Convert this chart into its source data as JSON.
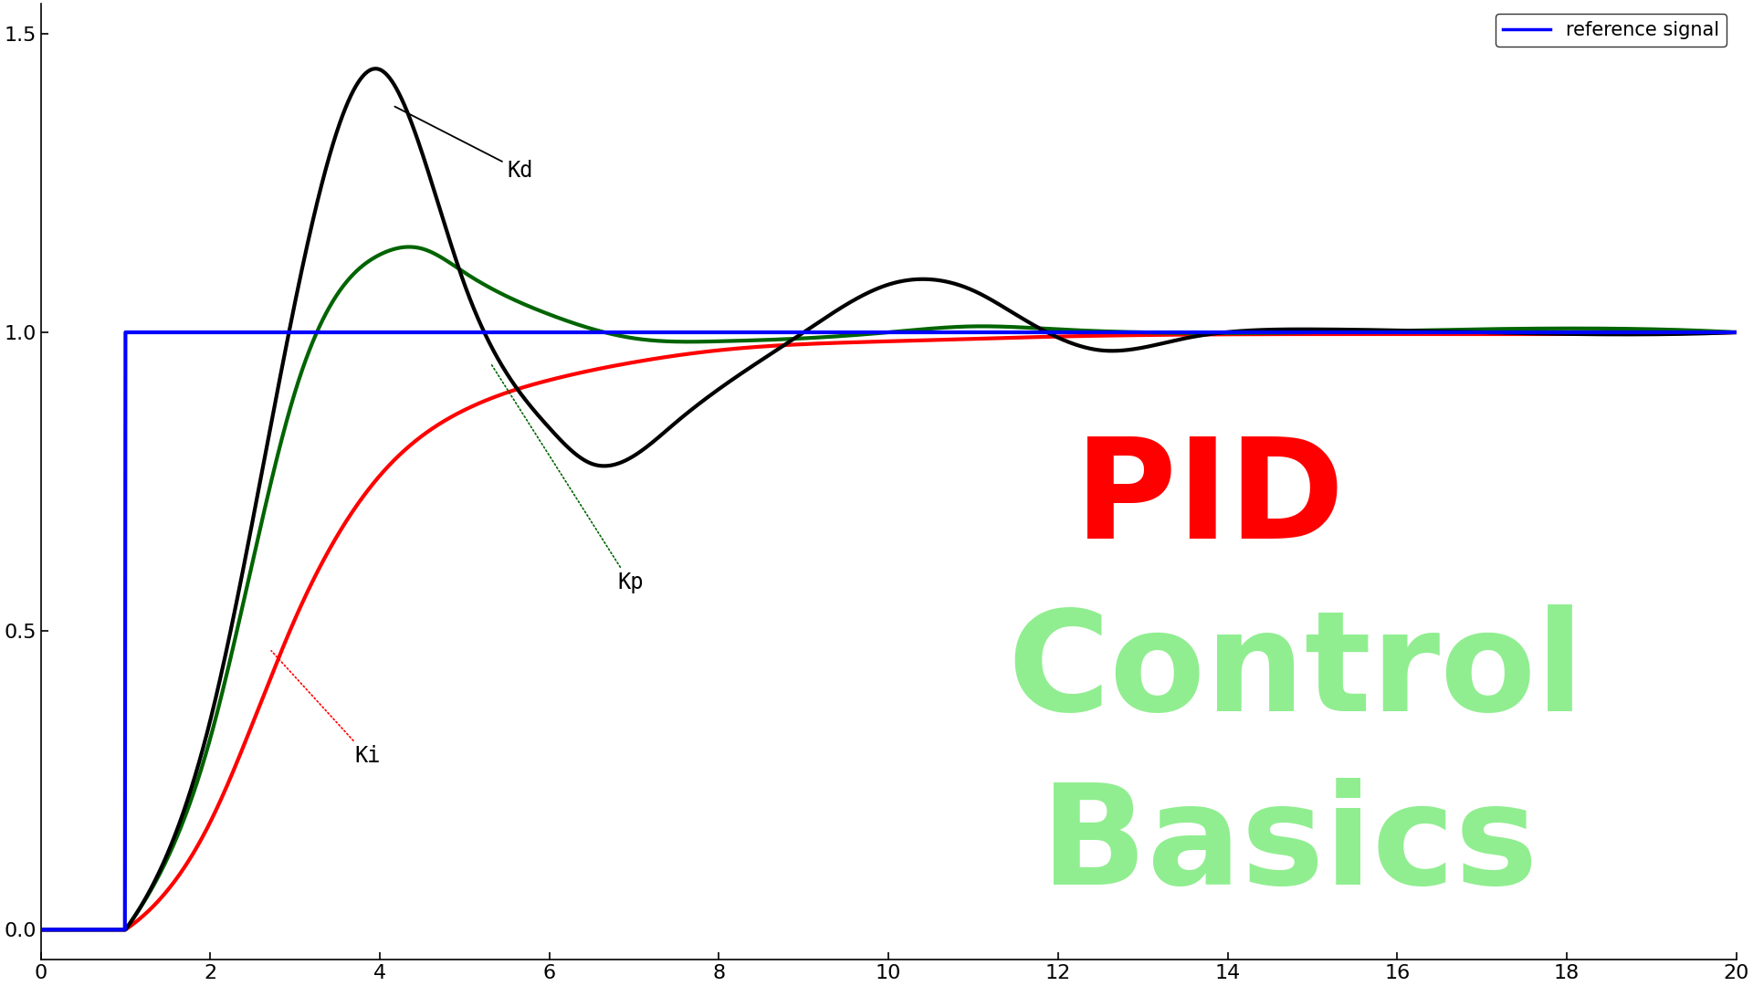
{
  "xlim": [
    0,
    20
  ],
  "ylim": [
    -0.05,
    1.55
  ],
  "yticks": [
    0,
    0.5,
    1,
    1.5
  ],
  "xticks": [
    0,
    2,
    4,
    6,
    8,
    10,
    12,
    14,
    16,
    18,
    20
  ],
  "ref_color": "#0000FF",
  "kd_color": "#000000",
  "kp_color": "#006400",
  "ki_color": "#FF0000",
  "text_pid_color": "#FF0000",
  "text_control_color": "#90EE90",
  "text_basics_color": "#90EE90",
  "legend_label": "reference signal",
  "background_color": "#FFFFFF",
  "annotation_kd": "Kd",
  "annotation_kp": "Kp",
  "annotation_ki": "Ki",
  "pid_fontsize": 110,
  "control_fontsize": 110,
  "basics_fontsize": 110,
  "annot_fontsize": 17,
  "tick_fontsize": 16,
  "legend_fontsize": 15,
  "linewidth": 2.5
}
